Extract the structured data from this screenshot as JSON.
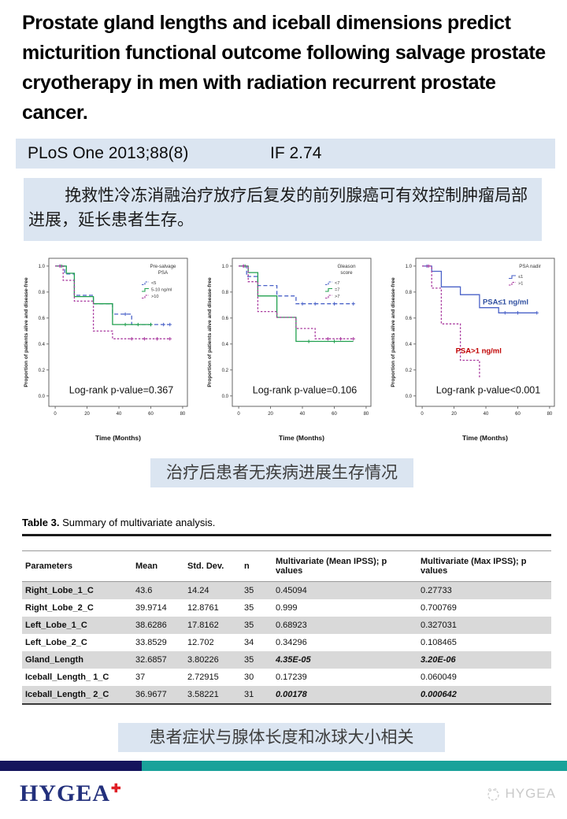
{
  "title": "Prostate gland lengths and iceball dimensions predict micturition functional outcome following salvage prostate cryotherapy in men with radiation recurrent prostate cancer.",
  "journal": {
    "citation": "PLoS One 2013;88(8)",
    "impact_factor": "IF 2.74"
  },
  "abstract_cn": "挽救性冷冻消融治疗放疗后复发的前列腺癌可有效控制肿瘤局部进展，延长患者生存。",
  "caption_survival": "治疗后患者无疾病进展生存情况",
  "caption_table": "患者症状与腺体长度和冰球大小相关",
  "colors": {
    "panel_bg": "#dbe5f1",
    "shaded_row": "#d9d9d9",
    "bar_navy": "#14145c",
    "bar_teal": "#19a29a",
    "logo_navy": "#23307c",
    "logo_red": "#e01e25",
    "series_blue": "#4a62c8",
    "series_green": "#21a04f",
    "series_purple": "#a8389e",
    "annot_blue": "#2f4fa0",
    "annot_red": "#c00000"
  },
  "chart_data": [
    {
      "type": "line",
      "ylabel": "Proportion of patients alive and disease-free",
      "xlabel": "Time (Months)",
      "xlim": [
        0,
        80
      ],
      "ylim": [
        0,
        1.0
      ],
      "xticks": [
        0,
        20,
        40,
        60,
        80
      ],
      "yticks": [
        0.0,
        0.2,
        0.4,
        0.6,
        0.8,
        1.0
      ],
      "grid": false,
      "legend_position": "top-right",
      "legend_title": [
        "Pre-salvage",
        "PSA"
      ],
      "annotation": "Log-rank p-value=0.367",
      "series": [
        {
          "name": "<5",
          "color": "#4a62c8",
          "dash": "5 3",
          "steps": [
            [
              0,
              1.0
            ],
            [
              6,
              1.0
            ],
            [
              6,
              0.94
            ],
            [
              12,
              0.94
            ],
            [
              12,
              0.775
            ],
            [
              24,
              0.775
            ],
            [
              24,
              0.71
            ],
            [
              36,
              0.71
            ],
            [
              36,
              0.63
            ],
            [
              48,
              0.63
            ],
            [
              48,
              0.55
            ],
            [
              72,
              0.55
            ]
          ],
          "censors": [
            [
              3,
              1.0
            ],
            [
              44,
              0.63
            ],
            [
              60,
              0.55
            ],
            [
              68,
              0.55
            ],
            [
              72,
              0.55
            ]
          ]
        },
        {
          "name": "5-10  ng/ml",
          "color": "#21a04f",
          "dash": "",
          "steps": [
            [
              0,
              1.0
            ],
            [
              7,
              1.0
            ],
            [
              7,
              0.945
            ],
            [
              12,
              0.945
            ],
            [
              12,
              0.765
            ],
            [
              24,
              0.765
            ],
            [
              24,
              0.71
            ],
            [
              36,
              0.71
            ],
            [
              36,
              0.55
            ],
            [
              60,
              0.55
            ]
          ],
          "censors": [
            [
              4,
              1.0
            ],
            [
              44,
              0.55
            ],
            [
              52,
              0.55
            ],
            [
              60,
              0.55
            ]
          ]
        },
        {
          "name": ">10",
          "color": "#a8389e",
          "dash": "2.5 2",
          "steps": [
            [
              0,
              1.0
            ],
            [
              5,
              1.0
            ],
            [
              5,
              0.89
            ],
            [
              12,
              0.89
            ],
            [
              12,
              0.73
            ],
            [
              24,
              0.73
            ],
            [
              24,
              0.5
            ],
            [
              36,
              0.5
            ],
            [
              36,
              0.44
            ],
            [
              72,
              0.44
            ]
          ],
          "censors": [
            [
              3,
              1.0
            ],
            [
              48,
              0.44
            ],
            [
              56,
              0.44
            ],
            [
              64,
              0.44
            ],
            [
              72,
              0.44
            ]
          ]
        }
      ],
      "inplot_labels": []
    },
    {
      "type": "line",
      "ylabel": "Proportion of patients alive and disease-free",
      "xlabel": "Time (Months)",
      "xlim": [
        0,
        80
      ],
      "ylim": [
        0,
        1.0
      ],
      "xticks": [
        0,
        20,
        40,
        60,
        80
      ],
      "yticks": [
        0.0,
        0.2,
        0.4,
        0.6,
        0.8,
        1.0
      ],
      "grid": false,
      "legend_position": "top-right",
      "legend_title": [
        "Gleason",
        "score"
      ],
      "annotation": "Log-rank p-value=0.106",
      "series": [
        {
          "name": "<7",
          "color": "#4a62c8",
          "dash": "5 3",
          "steps": [
            [
              0,
              1.0
            ],
            [
              5,
              1.0
            ],
            [
              5,
              0.92
            ],
            [
              12,
              0.92
            ],
            [
              12,
              0.85
            ],
            [
              24,
              0.85
            ],
            [
              24,
              0.77
            ],
            [
              36,
              0.77
            ],
            [
              36,
              0.71
            ],
            [
              72,
              0.71
            ]
          ],
          "censors": [
            [
              3,
              1.0
            ],
            [
              40,
              0.71
            ],
            [
              48,
              0.71
            ],
            [
              60,
              0.71
            ],
            [
              72,
              0.71
            ]
          ]
        },
        {
          "name": "=7",
          "color": "#21a04f",
          "dash": "",
          "steps": [
            [
              0,
              1.0
            ],
            [
              6,
              1.0
            ],
            [
              6,
              0.95
            ],
            [
              12,
              0.95
            ],
            [
              12,
              0.77
            ],
            [
              24,
              0.77
            ],
            [
              24,
              0.605
            ],
            [
              36,
              0.605
            ],
            [
              36,
              0.42
            ],
            [
              72,
              0.42
            ]
          ],
          "censors": [
            [
              4,
              1.0
            ],
            [
              44,
              0.42
            ],
            [
              60,
              0.42
            ]
          ]
        },
        {
          "name": ">7",
          "color": "#a8389e",
          "dash": "2.5 2",
          "steps": [
            [
              0,
              1.0
            ],
            [
              6,
              1.0
            ],
            [
              6,
              0.88
            ],
            [
              12,
              0.88
            ],
            [
              12,
              0.65
            ],
            [
              24,
              0.65
            ],
            [
              24,
              0.605
            ],
            [
              36,
              0.605
            ],
            [
              36,
              0.52
            ],
            [
              48,
              0.52
            ],
            [
              48,
              0.44
            ],
            [
              72,
              0.44
            ]
          ],
          "censors": [
            [
              3,
              1.0
            ],
            [
              56,
              0.44
            ],
            [
              64,
              0.44
            ],
            [
              72,
              0.44
            ]
          ]
        }
      ],
      "inplot_labels": []
    },
    {
      "type": "line",
      "ylabel": "Proportion of patients alive and disease-free",
      "xlabel": "Time (Months)",
      "xlim": [
        0,
        80
      ],
      "ylim": [
        0,
        1.0
      ],
      "xticks": [
        0,
        20,
        40,
        60,
        80
      ],
      "yticks": [
        0.0,
        0.2,
        0.4,
        0.6,
        0.8,
        1.0
      ],
      "grid": false,
      "legend_position": "top-right",
      "legend_title": [
        "PSA nadir"
      ],
      "annotation": "Log-rank p-value<0.001",
      "series": [
        {
          "name": "≤1",
          "color": "#4a62c8",
          "dash": "",
          "steps": [
            [
              0,
              1.0
            ],
            [
              6,
              1.0
            ],
            [
              6,
              0.96
            ],
            [
              12,
              0.96
            ],
            [
              12,
              0.84
            ],
            [
              24,
              0.84
            ],
            [
              24,
              0.78
            ],
            [
              36,
              0.78
            ],
            [
              36,
              0.68
            ],
            [
              48,
              0.68
            ],
            [
              48,
              0.64
            ],
            [
              72,
              0.64
            ]
          ],
          "censors": [
            [
              3,
              1.0
            ],
            [
              52,
              0.64
            ],
            [
              60,
              0.64
            ],
            [
              72,
              0.64
            ]
          ]
        },
        {
          "name": ">1",
          "color": "#a8389e",
          "dash": "2.5 2",
          "steps": [
            [
              0,
              1.0
            ],
            [
              6,
              1.0
            ],
            [
              6,
              0.83
            ],
            [
              12,
              0.83
            ],
            [
              12,
              0.555
            ],
            [
              24,
              0.555
            ],
            [
              24,
              0.275
            ],
            [
              36,
              0.275
            ],
            [
              36,
              0.14
            ]
          ],
          "censors": [
            [
              4,
              1.0
            ]
          ]
        }
      ],
      "inplot_labels": [
        {
          "text": "PSA≤1 ng/ml",
          "color": "#2f4fa0",
          "x": 38,
          "y": 0.705
        },
        {
          "text": "PSA>1 ng/ml",
          "color": "#c00000",
          "x": 21,
          "y": 0.33
        }
      ]
    }
  ],
  "table": {
    "title_bold": "Table 3.",
    "title_rest": " Summary of multivariate analysis.",
    "headers": [
      "Parameters",
      "Mean",
      "Std. Dev.",
      "n",
      "Multivariate (Mean IPSS); p values",
      "Multivariate (Max IPSS); p values"
    ],
    "rows": [
      {
        "param": "Right_Lobe_1_C",
        "mean": "43.6",
        "std": "14.24",
        "n": "35",
        "p_mean": "0.45094",
        "p_max": "0.27733",
        "sig_mean": false,
        "sig_max": false
      },
      {
        "param": "Right_Lobe_2_C",
        "mean": "39.9714",
        "std": "12.8761",
        "n": "35",
        "p_mean": "0.999",
        "p_max": "0.700769",
        "sig_mean": false,
        "sig_max": false
      },
      {
        "param": "Left_Lobe_1_C",
        "mean": "38.6286",
        "std": "17.8162",
        "n": "35",
        "p_mean": "0.68923",
        "p_max": "0.327031",
        "sig_mean": false,
        "sig_max": false
      },
      {
        "param": "Left_Lobe_2_C",
        "mean": "33.8529",
        "std": "12.702",
        "n": "34",
        "p_mean": "0.34296",
        "p_max": "0.108465",
        "sig_mean": false,
        "sig_max": false
      },
      {
        "param": "Gland_Length",
        "mean": "32.6857",
        "std": "3.80226",
        "n": "35",
        "p_mean": "4.35E-05",
        "p_max": "3.20E-06",
        "sig_mean": true,
        "sig_max": true
      },
      {
        "param": "Iceball_Length_ 1_C",
        "mean": "37",
        "std": "2.72915",
        "n": "30",
        "p_mean": "0.17239",
        "p_max": "0.060049",
        "sig_mean": false,
        "sig_max": false
      },
      {
        "param": "Iceball_Length_ 2_C",
        "mean": "36.9677",
        "std": "3.58221",
        "n": "31",
        "p_mean": "0.00178",
        "p_max": "0.000642",
        "sig_mean": true,
        "sig_max": true
      }
    ]
  },
  "footer": {
    "logo_text": "HYGEA",
    "logo_plus": "✚",
    "watermark_text": "HYGEA"
  }
}
